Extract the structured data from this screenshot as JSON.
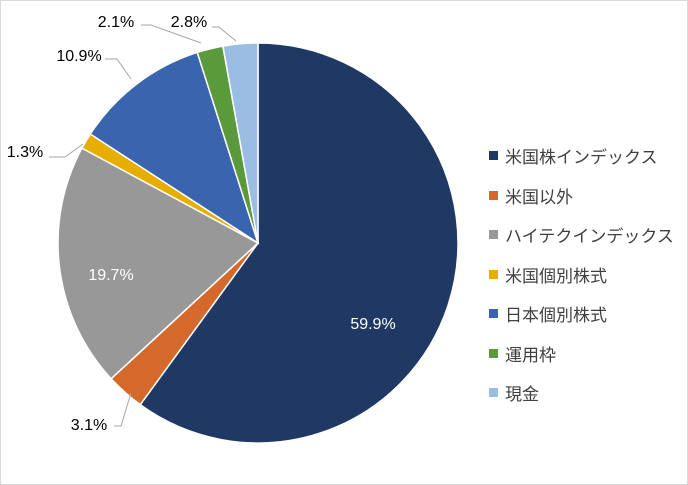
{
  "chart_data": {
    "type": "pie",
    "start": "top",
    "direction": "clockwise",
    "categories": [
      "米国株インデックス",
      "米国以外",
      "ハイテクインデックス",
      "米国個別株式",
      "日本個別株式",
      "運用枠",
      "現金"
    ],
    "values": [
      59.9,
      3.1,
      19.7,
      1.3,
      10.9,
      2.1,
      2.8
    ],
    "data_labels": [
      "59.9%",
      "3.1%",
      "19.7%",
      "1.3%",
      "10.9%",
      "2.1%",
      "2.8%"
    ],
    "colors": [
      "#1F3864",
      "#D5692B",
      "#989898",
      "#E5AE00",
      "#3B64AE",
      "#5A9A3B",
      "#9CBDE3"
    ],
    "legend_position": "right"
  }
}
